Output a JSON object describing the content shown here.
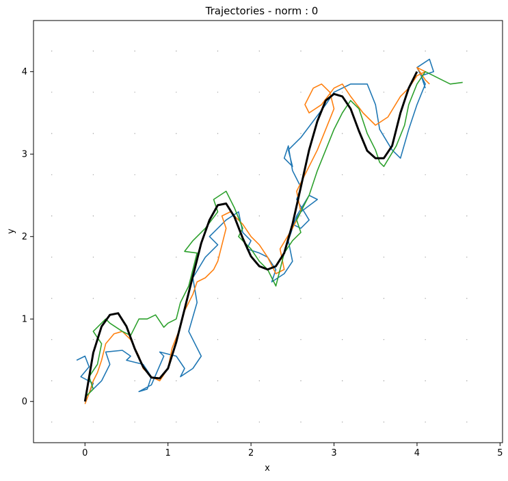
{
  "chart_data": {
    "type": "line",
    "title": "Trajectories - norm : 0",
    "xlabel": "x",
    "ylabel": "y",
    "xlim": [
      -0.62,
      5.03
    ],
    "ylim": [
      -0.5,
      4.62
    ],
    "xticks": [
      0,
      1,
      2,
      3,
      4,
      5
    ],
    "yticks": [
      0,
      1,
      2,
      3,
      4
    ],
    "grid": "dotted point grid",
    "legend": "none",
    "reference_curve": {
      "color": "#000000",
      "x": [
        0,
        0.1,
        0.2,
        0.3,
        0.4,
        0.5,
        0.6,
        0.7,
        0.8,
        0.9,
        1.0,
        1.1,
        1.2,
        1.3,
        1.4,
        1.5,
        1.6,
        1.7,
        1.8,
        1.9,
        2.0,
        2.1,
        2.2,
        2.3,
        2.4,
        2.5,
        2.6,
        2.7,
        2.8,
        2.9,
        3.0,
        3.1,
        3.2,
        3.3,
        3.4,
        3.5,
        3.6,
        3.7,
        3.8,
        3.9,
        4.0
      ],
      "y": [
        0.0,
        0.59,
        0.91,
        1.05,
        1.07,
        0.91,
        0.64,
        0.42,
        0.29,
        0.28,
        0.4,
        0.72,
        1.12,
        1.52,
        1.92,
        2.2,
        2.38,
        2.4,
        2.24,
        1.98,
        1.76,
        1.64,
        1.6,
        1.64,
        1.8,
        2.15,
        2.6,
        3.05,
        3.4,
        3.65,
        3.73,
        3.7,
        3.55,
        3.28,
        3.04,
        2.95,
        2.95,
        3.1,
        3.5,
        3.8,
        4.0
      ]
    },
    "series": [
      {
        "color": "#1f77b4",
        "x": [
          -0.1,
          0.0,
          0.05,
          -0.05,
          0.1,
          0.05,
          0.2,
          0.3,
          0.25,
          0.45,
          0.55,
          0.5,
          0.7,
          0.8,
          0.75,
          0.65,
          0.8,
          0.95,
          0.9,
          1.1,
          1.2,
          1.15,
          1.3,
          1.4,
          1.25,
          1.35,
          1.3,
          1.45,
          1.6,
          1.5,
          1.7,
          1.85,
          1.9,
          2.0,
          1.95,
          2.1,
          2.2,
          2.3,
          2.25,
          2.4,
          2.5,
          2.45,
          2.55,
          2.7,
          2.8,
          2.6,
          2.5,
          2.6,
          2.7,
          2.55,
          2.6,
          2.5,
          2.45,
          2.4,
          2.5,
          2.45,
          2.6,
          2.75,
          2.9,
          3.0,
          3.2,
          3.4,
          3.5,
          3.55,
          3.7,
          3.8,
          3.9,
          4.0,
          4.1,
          4.0,
          4.15,
          4.2,
          4.05,
          4.1
        ],
        "y": [
          0.5,
          0.55,
          0.42,
          0.3,
          0.22,
          0.1,
          0.25,
          0.45,
          0.6,
          0.62,
          0.55,
          0.5,
          0.45,
          0.3,
          0.15,
          0.12,
          0.2,
          0.55,
          0.6,
          0.55,
          0.4,
          0.3,
          0.4,
          0.55,
          0.85,
          1.2,
          1.5,
          1.75,
          1.9,
          2.0,
          2.2,
          2.3,
          2.05,
          1.95,
          1.85,
          1.8,
          1.75,
          1.6,
          1.45,
          1.55,
          1.7,
          1.95,
          2.25,
          2.5,
          2.45,
          2.3,
          2.15,
          2.1,
          2.2,
          2.45,
          2.6,
          2.8,
          3.1,
          2.95,
          2.85,
          3.05,
          3.2,
          3.4,
          3.6,
          3.75,
          3.85,
          3.85,
          3.6,
          3.3,
          3.05,
          2.95,
          3.3,
          3.6,
          3.85,
          4.05,
          4.15,
          4.0,
          3.95,
          3.8
        ]
      },
      {
        "color": "#ff7f0e",
        "x": [
          0.0,
          0.05,
          0.1,
          0.15,
          0.2,
          0.25,
          0.35,
          0.45,
          0.55,
          0.65,
          0.7,
          0.8,
          0.9,
          1.0,
          1.05,
          1.15,
          1.2,
          1.3,
          1.35,
          1.45,
          1.55,
          1.6,
          1.65,
          1.7,
          1.65,
          1.75,
          1.9,
          2.0,
          2.1,
          2.2,
          2.3,
          2.4,
          2.35,
          2.5,
          2.6,
          2.55,
          2.65,
          2.8,
          2.9,
          3.0,
          2.95,
          2.85,
          2.75,
          2.65,
          2.7,
          2.85,
          3.0,
          3.1,
          3.2,
          3.35,
          3.5,
          3.65,
          3.8,
          3.9,
          4.0,
          4.1,
          4.0,
          4.1,
          4.15
        ],
        "y": [
          -0.03,
          0.1,
          0.25,
          0.35,
          0.5,
          0.7,
          0.82,
          0.85,
          0.75,
          0.55,
          0.4,
          0.3,
          0.25,
          0.4,
          0.65,
          0.9,
          1.1,
          1.3,
          1.45,
          1.5,
          1.6,
          1.7,
          1.9,
          2.1,
          2.25,
          2.3,
          2.15,
          2.0,
          1.9,
          1.75,
          1.55,
          1.6,
          1.85,
          2.1,
          2.3,
          2.55,
          2.75,
          3.05,
          3.3,
          3.55,
          3.75,
          3.85,
          3.8,
          3.6,
          3.5,
          3.6,
          3.8,
          3.85,
          3.7,
          3.5,
          3.35,
          3.45,
          3.7,
          3.8,
          3.95,
          4.0,
          4.05,
          3.9,
          3.85
        ]
      },
      {
        "color": "#2ca02c",
        "x": [
          0.0,
          0.1,
          0.05,
          0.15,
          0.2,
          0.1,
          0.25,
          0.3,
          0.45,
          0.55,
          0.65,
          0.75,
          0.85,
          0.95,
          1.0,
          1.1,
          1.15,
          1.25,
          1.3,
          1.35,
          1.2,
          1.3,
          1.45,
          1.6,
          1.55,
          1.7,
          1.8,
          1.9,
          1.85,
          2.0,
          2.1,
          2.2,
          2.25,
          2.3,
          2.35,
          2.4,
          2.5,
          2.6,
          2.55,
          2.7,
          2.8,
          2.9,
          3.0,
          3.1,
          3.2,
          3.3,
          3.4,
          3.5,
          3.55,
          3.6,
          3.75,
          3.85,
          3.9,
          4.0,
          4.1,
          4.2,
          4.3,
          4.4,
          4.55
        ],
        "y": [
          0.05,
          0.15,
          0.3,
          0.45,
          0.7,
          0.85,
          1.0,
          0.95,
          0.85,
          0.8,
          1.0,
          1.0,
          1.05,
          0.9,
          0.95,
          1.0,
          1.2,
          1.4,
          1.6,
          1.8,
          1.82,
          1.95,
          2.1,
          2.3,
          2.45,
          2.55,
          2.35,
          2.1,
          2.0,
          1.85,
          1.7,
          1.6,
          1.5,
          1.4,
          1.6,
          1.8,
          1.95,
          2.05,
          2.2,
          2.5,
          2.8,
          3.05,
          3.3,
          3.5,
          3.65,
          3.55,
          3.25,
          3.05,
          2.9,
          2.85,
          3.1,
          3.35,
          3.6,
          3.85,
          4.0,
          3.95,
          3.9,
          3.85,
          3.87
        ]
      }
    ]
  }
}
